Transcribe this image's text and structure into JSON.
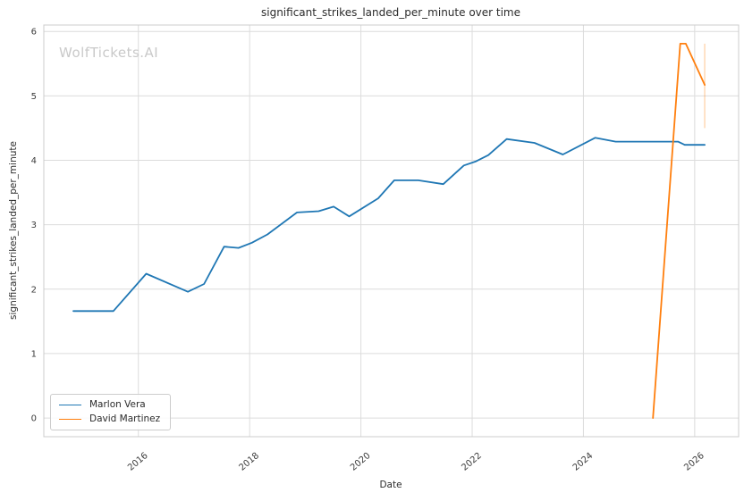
{
  "figure": {
    "watermark": "WolfTickets.AI"
  },
  "chart_data": {
    "type": "line",
    "title": "significant_strikes_landed_per_minute over time",
    "xlabel": "Date",
    "ylabel": "significant_strikes_landed_per_minute",
    "xlim": [
      2014.3,
      2026.79
    ],
    "ylim": [
      -0.29,
      6.1
    ],
    "xticks": [
      2016,
      2018,
      2020,
      2022,
      2024,
      2026
    ],
    "yticks": [
      0,
      1,
      2,
      3,
      4,
      5,
      6
    ],
    "grid": true,
    "legend_position": "lower-left",
    "series": [
      {
        "name": "Marlon Vera",
        "color": "#1f77b4",
        "points": [
          [
            2014.83,
            1.66
          ],
          [
            2015.55,
            1.66
          ],
          [
            2016.14,
            2.24
          ],
          [
            2016.89,
            1.96
          ],
          [
            2017.18,
            2.08
          ],
          [
            2017.54,
            2.66
          ],
          [
            2017.8,
            2.64
          ],
          [
            2018.04,
            2.72
          ],
          [
            2018.32,
            2.85
          ],
          [
            2018.85,
            3.19
          ],
          [
            2019.24,
            3.21
          ],
          [
            2019.51,
            3.28
          ],
          [
            2019.79,
            3.13
          ],
          [
            2020.31,
            3.41
          ],
          [
            2020.6,
            3.69
          ],
          [
            2021.03,
            3.69
          ],
          [
            2021.48,
            3.63
          ],
          [
            2021.85,
            3.92
          ],
          [
            2022.06,
            3.98
          ],
          [
            2022.29,
            4.08
          ],
          [
            2022.62,
            4.33
          ],
          [
            2023.12,
            4.27
          ],
          [
            2023.63,
            4.09
          ],
          [
            2024.21,
            4.35
          ],
          [
            2024.58,
            4.29
          ],
          [
            2025.7,
            4.29
          ],
          [
            2025.82,
            4.24
          ],
          [
            2026.18,
            4.24
          ]
        ]
      },
      {
        "name": "David Martinez",
        "color": "#ff7f0e",
        "points": [
          [
            2025.25,
            0.0
          ],
          [
            2025.74,
            5.81
          ],
          [
            2025.84,
            5.81
          ],
          [
            2026.18,
            5.17
          ]
        ]
      }
    ],
    "annotations": [
      {
        "type": "vline-range",
        "x": 2026.18,
        "y_min": 4.5,
        "y_max": 5.81,
        "color": "#ff7f0e",
        "opacity": 0.3
      }
    ]
  },
  "colors": {
    "series_1": "#1f77b4",
    "series_2": "#ff7f0e",
    "grid": "#dcdcdc",
    "spine": "#cccccc",
    "tick_text": "#3b3b3b",
    "text": "#2b2b2b",
    "watermark": "#c9c9c9",
    "background": "#ffffff"
  }
}
